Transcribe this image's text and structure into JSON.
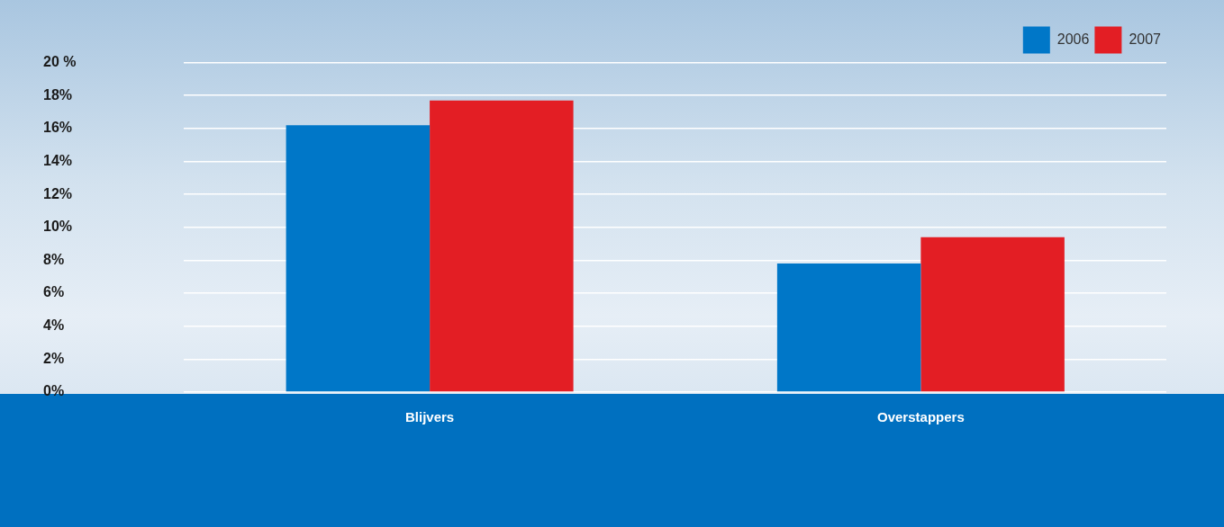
{
  "chart_data": {
    "type": "bar",
    "categories": [
      "Blijvers",
      "Overstappers"
    ],
    "series": [
      {
        "name": "2006",
        "color": "#0077c8",
        "values": [
          16.2,
          7.8
        ]
      },
      {
        "name": "2007",
        "color": "#e31e24",
        "values": [
          17.7,
          9.4
        ]
      }
    ],
    "ylim": [
      0,
      20
    ],
    "yticks": [
      {
        "value": 0,
        "label": "0%"
      },
      {
        "value": 2,
        "label": "2%"
      },
      {
        "value": 4,
        "label": "4%"
      },
      {
        "value": 6,
        "label": "6%"
      },
      {
        "value": 8,
        "label": "8%"
      },
      {
        "value": 10,
        "label": "10%"
      },
      {
        "value": 12,
        "label": "12%"
      },
      {
        "value": 14,
        "label": "14%"
      },
      {
        "value": 16,
        "label": "16%"
      },
      {
        "value": 18,
        "label": "18%"
      },
      {
        "value": 20,
        "label": "20 %"
      }
    ],
    "grid": true,
    "legend": "upper right"
  }
}
